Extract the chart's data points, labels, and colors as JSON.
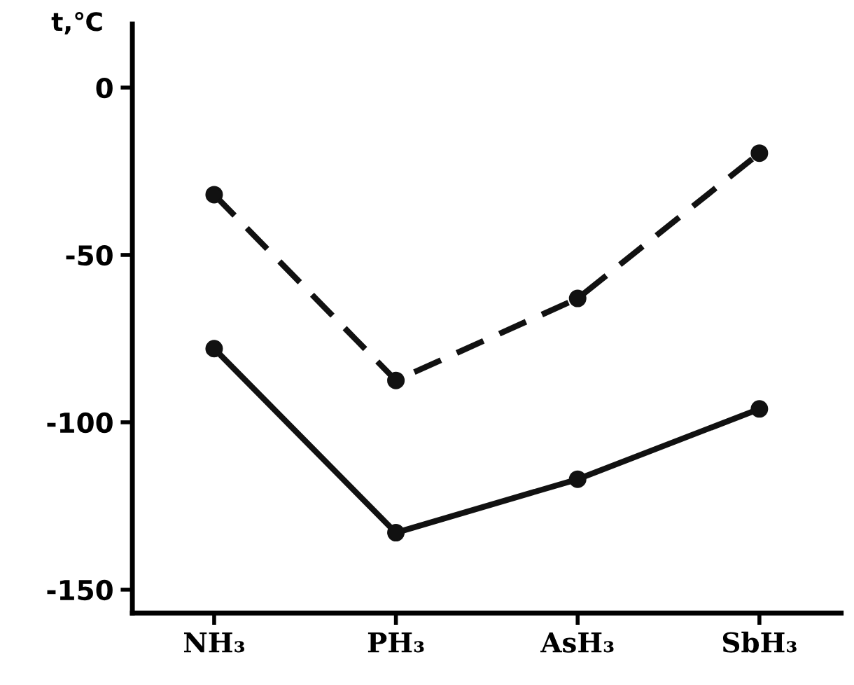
{
  "chart_data": {
    "type": "line",
    "ylabel": "t,℃",
    "categories": [
      "NH₃",
      "PH₃",
      "AsH₃",
      "SbH₃"
    ],
    "series": [
      {
        "color": "#111111",
        "line_style": "dashed",
        "values": [
          -32,
          -87.5,
          -63,
          -19.6
        ]
      },
      {
        "color": "#111111",
        "line_style": "solid",
        "values": [
          -78,
          -133,
          -117,
          -96
        ]
      }
    ],
    "ylim": [
      -157,
      19
    ],
    "yticks": [
      0,
      -50,
      -100,
      -150
    ],
    "marker": "circle",
    "grid": false
  }
}
